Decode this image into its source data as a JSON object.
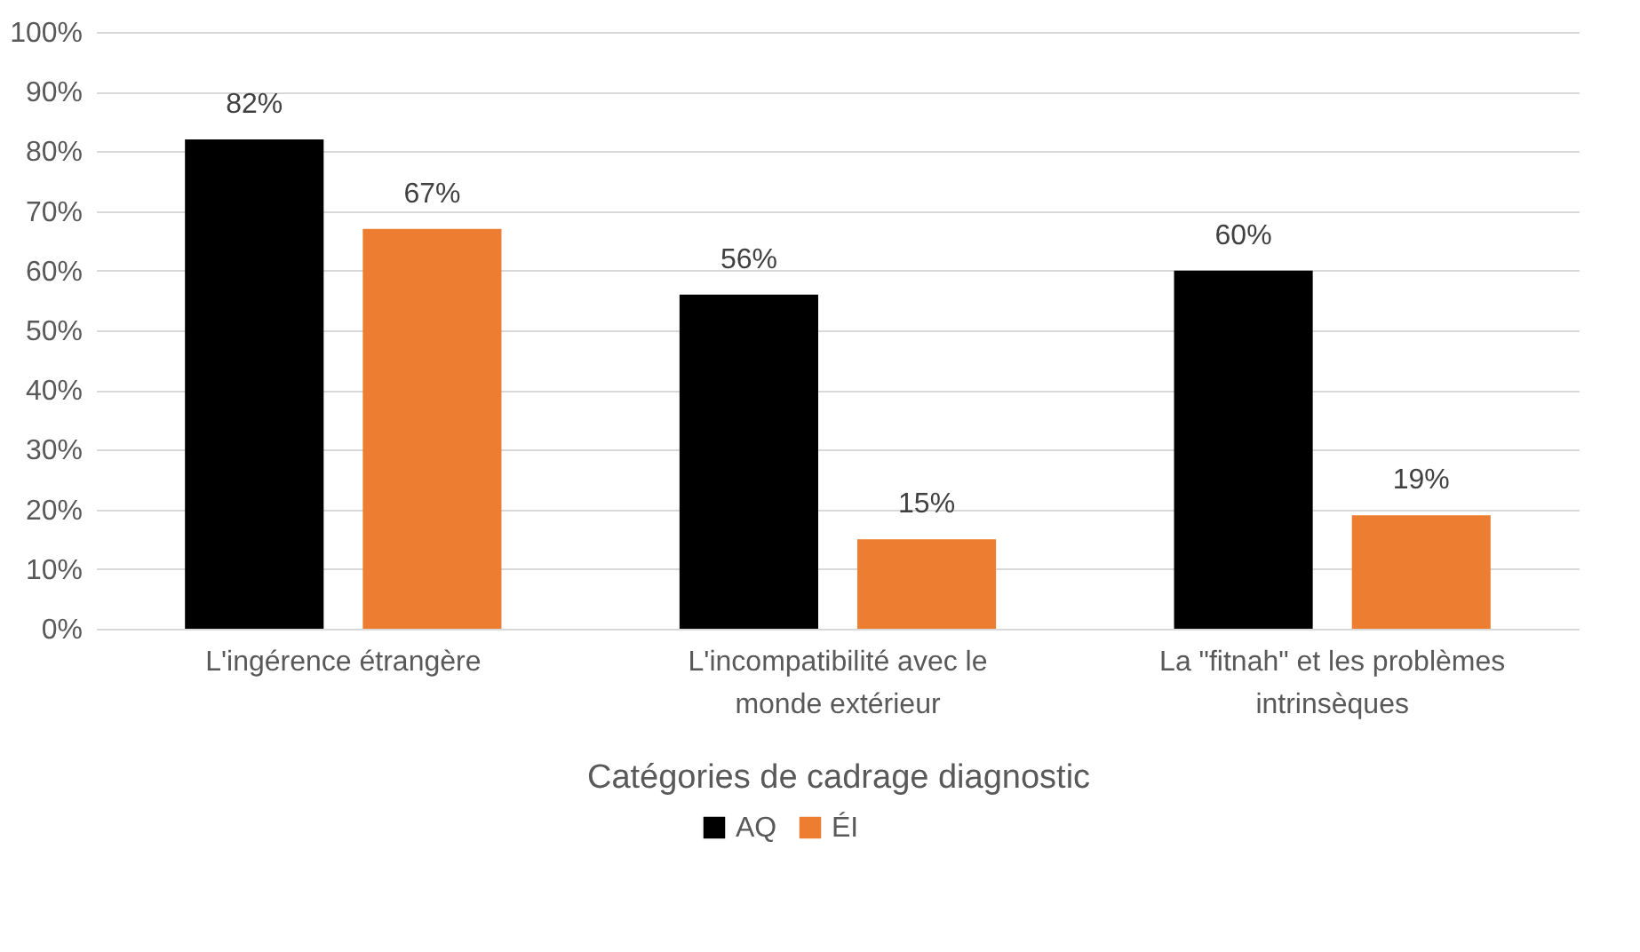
{
  "chart_data": {
    "type": "bar",
    "xlabel": "Catégories de cadrage diagnostic",
    "categories": [
      "L'ingérence étrangère",
      "L'incompatibilité avec le monde extérieur",
      "La \"fitnah\" et les problèmes intrinsèques"
    ],
    "series": [
      {
        "name": "AQ",
        "color": "#000000",
        "values": [
          82,
          56,
          60
        ],
        "value_labels": [
          "82%",
          "56%",
          "60%"
        ]
      },
      {
        "name": "ÉI",
        "color": "#ed7d31",
        "values": [
          67,
          15,
          19
        ],
        "value_labels": [
          "67%",
          "15%",
          "19%"
        ]
      }
    ],
    "ylim": [
      0,
      100
    ],
    "yticks": [
      {
        "value": 0,
        "label": "0%"
      },
      {
        "value": 10,
        "label": "10%"
      },
      {
        "value": 20,
        "label": "20%"
      },
      {
        "value": 30,
        "label": "30%"
      },
      {
        "value": 40,
        "label": "40%"
      },
      {
        "value": 50,
        "label": "50%"
      },
      {
        "value": 60,
        "label": "60%"
      },
      {
        "value": 70,
        "label": "70%"
      },
      {
        "value": 80,
        "label": "80%"
      },
      {
        "value": 90,
        "label": "90%"
      },
      {
        "value": 100,
        "label": "100%"
      }
    ],
    "grid": "y",
    "legend": "bottom"
  }
}
